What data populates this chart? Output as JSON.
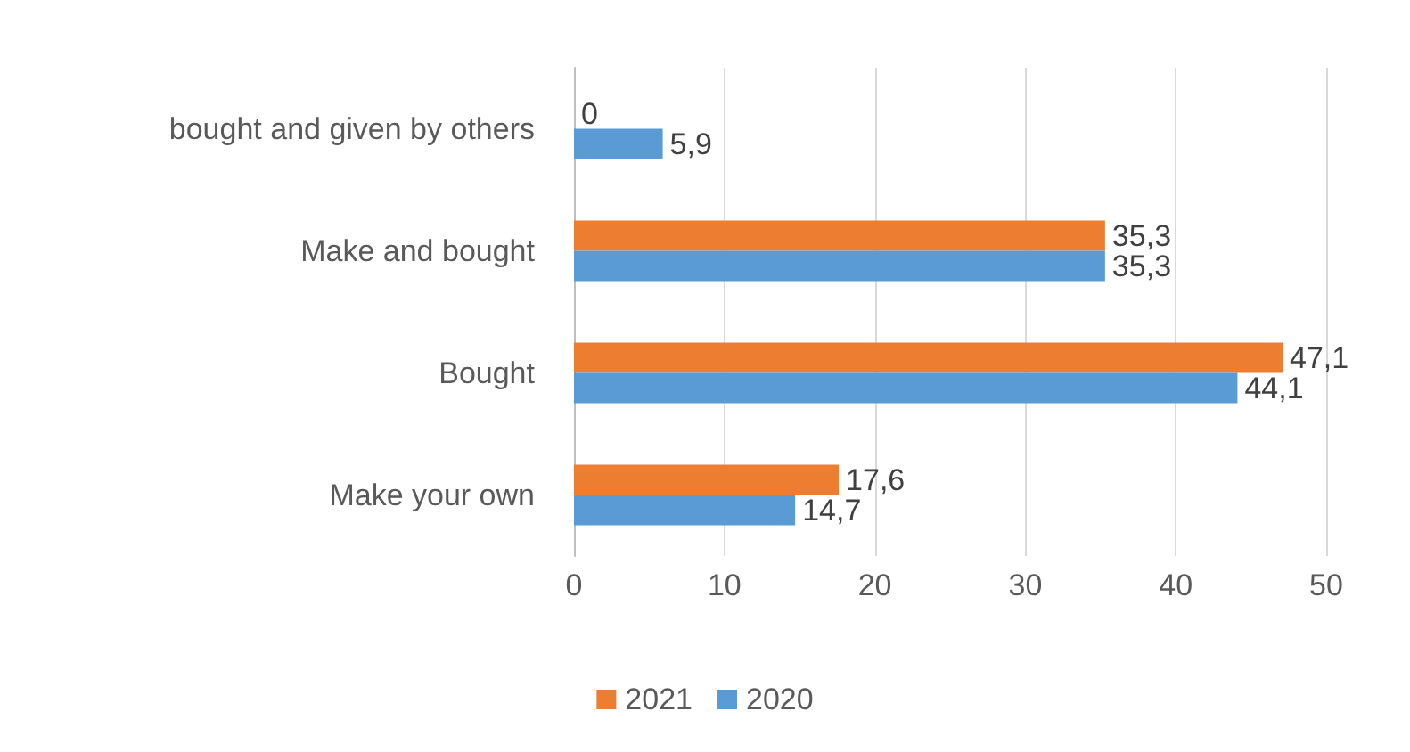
{
  "chart_data": {
    "type": "bar",
    "orientation": "horizontal",
    "categories": [
      "bought and given by others",
      "Make and bought",
      "Bought",
      "Make your own"
    ],
    "series": [
      {
        "name": "2021",
        "color": "#ed7d31",
        "values": [
          0,
          35.3,
          47.1,
          17.6
        ],
        "value_labels": [
          "0",
          "35,3",
          "47,1",
          "17,6"
        ]
      },
      {
        "name": "2020",
        "color": "#5b9bd5",
        "values": [
          5.9,
          35.3,
          44.1,
          14.7
        ],
        "value_labels": [
          "5,9",
          "35,3",
          "44,1",
          "14,7"
        ]
      }
    ],
    "xlim": [
      0,
      50
    ],
    "xticks": [
      0,
      10,
      20,
      30,
      40,
      50
    ],
    "grid": "x",
    "legend": "bottom"
  }
}
